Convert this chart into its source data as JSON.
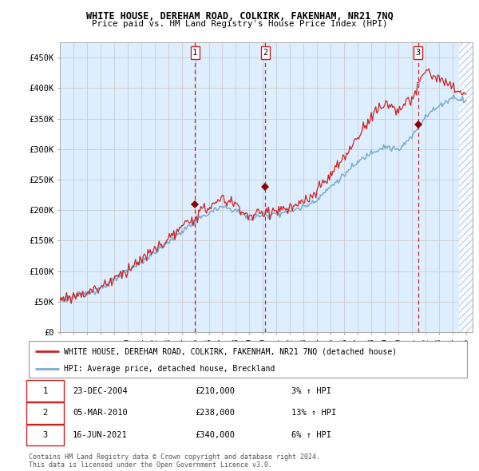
{
  "title": "WHITE HOUSE, DEREHAM ROAD, COLKIRK, FAKENHAM, NR21 7NQ",
  "subtitle": "Price paid vs. HM Land Registry's House Price Index (HPI)",
  "ylim": [
    0,
    475000
  ],
  "yticks": [
    0,
    50000,
    100000,
    150000,
    200000,
    250000,
    300000,
    350000,
    400000,
    450000
  ],
  "ytick_labels": [
    "£0",
    "£50K",
    "£100K",
    "£150K",
    "£200K",
    "£250K",
    "£300K",
    "£350K",
    "£400K",
    "£450K"
  ],
  "xlim_start": 1995.0,
  "xlim_end": 2025.5,
  "xtick_years": [
    1995,
    1996,
    1997,
    1998,
    1999,
    2000,
    2001,
    2002,
    2003,
    2004,
    2005,
    2006,
    2007,
    2008,
    2009,
    2010,
    2011,
    2012,
    2013,
    2014,
    2015,
    2016,
    2017,
    2018,
    2019,
    2020,
    2021,
    2022,
    2023,
    2024,
    2025
  ],
  "legend_line1": "WHITE HOUSE, DEREHAM ROAD, COLKIRK, FAKENHAM, NR21 7NQ (detached house)",
  "legend_line2": "HPI: Average price, detached house, Breckland",
  "transactions": [
    {
      "num": 1,
      "date": "23-DEC-2004",
      "price": 210000,
      "pct": "3%",
      "dir": "↑",
      "x": 2004.98
    },
    {
      "num": 2,
      "date": "05-MAR-2010",
      "price": 238000,
      "pct": "13%",
      "dir": "↑",
      "x": 2010.18
    },
    {
      "num": 3,
      "date": "16-JUN-2021",
      "price": 340000,
      "pct": "6%",
      "dir": "↑",
      "x": 2021.46
    }
  ],
  "hpi_color": "#7aabce",
  "price_color": "#cc2222",
  "vline_color": "#cc2222",
  "marker_color": "#880000",
  "bg_shading_color": "#ddeeff",
  "hatch_color": "#bbccdd",
  "grid_color": "#cccccc",
  "footer": "Contains HM Land Registry data © Crown copyright and database right 2024.\nThis data is licensed under the Open Government Licence v3.0.",
  "hpi_anchors_x": [
    1995,
    1996,
    1997,
    1998,
    1999,
    2000,
    2001,
    2002,
    2003,
    2004,
    2005,
    2006,
    2007,
    2008,
    2009,
    2010,
    2011,
    2012,
    2013,
    2014,
    2015,
    2016,
    2017,
    2018,
    2019,
    2020,
    2021,
    2022,
    2023,
    2024,
    2025
  ],
  "hpi_anchors_y": [
    52000,
    58000,
    64000,
    72000,
    85000,
    100000,
    115000,
    130000,
    148000,
    165000,
    182000,
    195000,
    205000,
    200000,
    185000,
    192000,
    195000,
    198000,
    205000,
    218000,
    238000,
    258000,
    278000,
    295000,
    305000,
    298000,
    320000,
    355000,
    370000,
    385000,
    380000
  ],
  "price_anchors_x": [
    1995,
    1996,
    1997,
    1998,
    1999,
    2000,
    2001,
    2002,
    2003,
    2004,
    2005,
    2006,
    2007,
    2008,
    2009,
    2010,
    2011,
    2012,
    2013,
    2014,
    2015,
    2016,
    2017,
    2018,
    2019,
    2020,
    2021,
    2022,
    2023,
    2024,
    2025
  ],
  "price_anchors_y": [
    53000,
    59000,
    65000,
    74000,
    87000,
    103000,
    118000,
    135000,
    152000,
    170000,
    190000,
    205000,
    218000,
    210000,
    188000,
    196000,
    200000,
    202000,
    212000,
    230000,
    258000,
    285000,
    320000,
    355000,
    375000,
    365000,
    380000,
    430000,
    415000,
    400000,
    390000
  ]
}
